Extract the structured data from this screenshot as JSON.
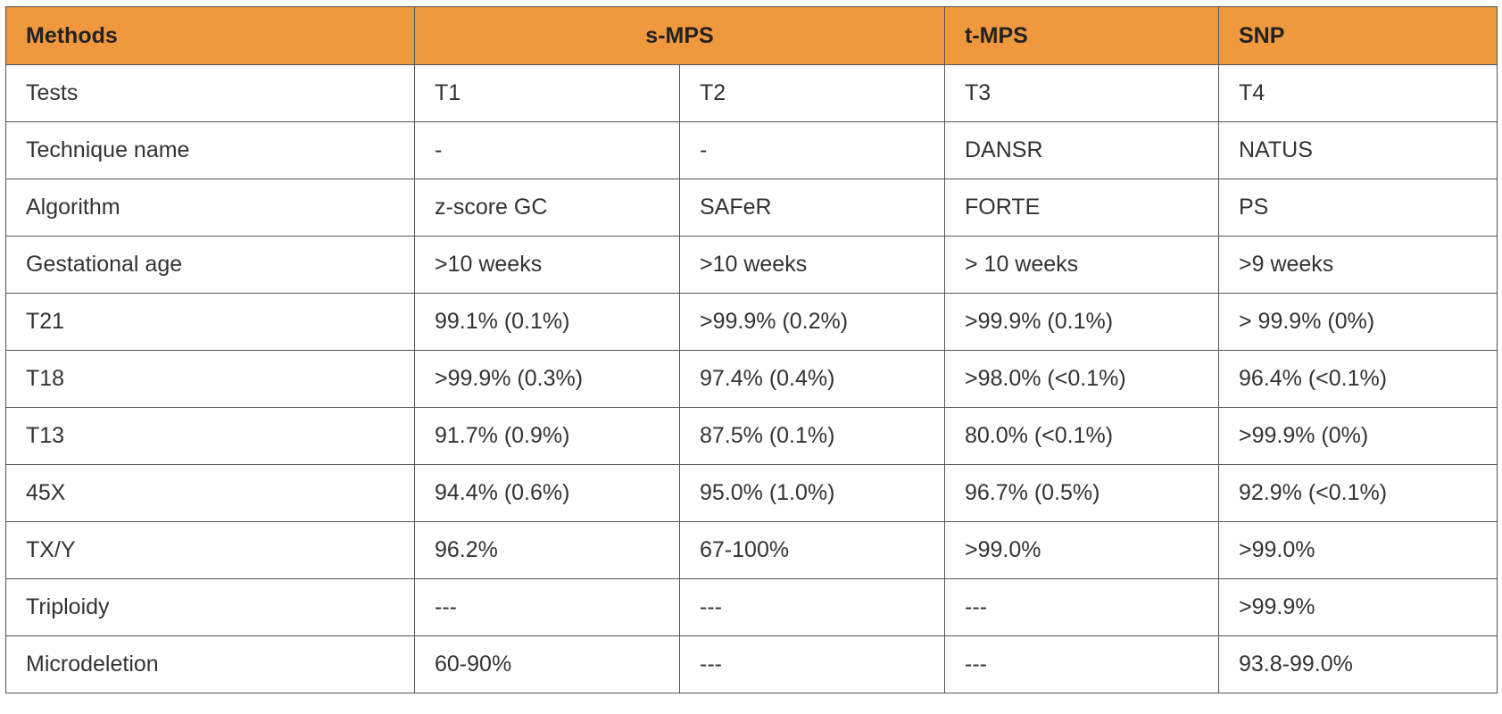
{
  "header": {
    "methods": "Methods",
    "s_mps": "s-MPS",
    "t_mps": "t-MPS",
    "snp": "SNP"
  },
  "rows": [
    {
      "label": "Tests",
      "t1": "T1",
      "t2": "T2",
      "t3": "T3",
      "t4": "T4"
    },
    {
      "label": "Technique name",
      "t1": "-",
      "t2": "-",
      "t3": "DANSR",
      "t4": "NATUS"
    },
    {
      "label": "Algorithm",
      "t1": "z-score GC",
      "t2": "SAFeR",
      "t3": "FORTE",
      "t4": "PS"
    },
    {
      "label": "Gestational age",
      "t1": ">10 weeks",
      "t2": ">10 weeks",
      "t3": "> 10 weeks",
      "t4": ">9 weeks"
    },
    {
      "label": "T21",
      "t1": "99.1% (0.1%)",
      "t2": ">99.9% (0.2%)",
      "t3": ">99.9% (0.1%)",
      "t4": "> 99.9% (0%)"
    },
    {
      "label": "T18",
      "t1": ">99.9% (0.3%)",
      "t2": "97.4% (0.4%)",
      "t3": ">98.0% (<0.1%)",
      "t4": "96.4% (<0.1%)"
    },
    {
      "label": "T13",
      "t1": "91.7% (0.9%)",
      "t2": "87.5% (0.1%)",
      "t3": "80.0% (<0.1%)",
      "t4": ">99.9% (0%)"
    },
    {
      "label": "45X",
      "t1": "94.4% (0.6%)",
      "t2": "95.0% (1.0%)",
      "t3": "96.7% (0.5%)",
      "t4": "92.9% (<0.1%)"
    },
    {
      "label": "TX/Y",
      "t1": "96.2%",
      "t2": "67-100%",
      "t3": ">99.0%",
      "t4": ">99.0%"
    },
    {
      "label": "Triploidy",
      "t1": "---",
      "t2": "---",
      "t3": "---",
      "t4": ">99.9%"
    },
    {
      "label": "Microdeletion",
      "t1": "60-90%",
      "t2": "---",
      "t3": "---",
      "t4": "93.8-99.0%"
    }
  ],
  "colors": {
    "header_bg": "#f0983e",
    "border": "#555555",
    "text": "#333333"
  }
}
